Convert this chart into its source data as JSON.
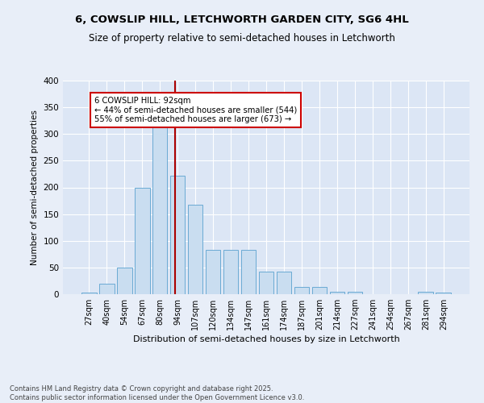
{
  "title1": "6, COWSLIP HILL, LETCHWORTH GARDEN CITY, SG6 4HL",
  "title2": "Size of property relative to semi-detached houses in Letchworth",
  "xlabel": "Distribution of semi-detached houses by size in Letchworth",
  "ylabel": "Number of semi-detached properties",
  "categories": [
    "27sqm",
    "40sqm",
    "54sqm",
    "67sqm",
    "80sqm",
    "94sqm",
    "107sqm",
    "120sqm",
    "134sqm",
    "147sqm",
    "161sqm",
    "174sqm",
    "187sqm",
    "201sqm",
    "214sqm",
    "227sqm",
    "241sqm",
    "254sqm",
    "267sqm",
    "281sqm",
    "294sqm"
  ],
  "values": [
    3,
    19,
    50,
    200,
    325,
    222,
    167,
    83,
    83,
    83,
    42,
    42,
    13,
    13,
    5,
    5,
    0,
    0,
    0,
    5,
    3
  ],
  "bar_color": "#c9ddf0",
  "bar_edge_color": "#6aaad4",
  "bg_color": "#dce6f5",
  "fig_bg_color": "#e8eef8",
  "grid_color": "#ffffff",
  "vline_color": "#aa0000",
  "vline_pos": 4.85,
  "ann_line1": "6 COWSLIP HILL: 92sqm",
  "ann_line2": "← 44% of semi-detached houses are smaller (544)",
  "ann_line3": "55% of semi-detached houses are larger (673) →",
  "ann_box_color": "#cc0000",
  "footer1": "Contains HM Land Registry data © Crown copyright and database right 2025.",
  "footer2": "Contains public sector information licensed under the Open Government Licence v3.0.",
  "ylim": [
    0,
    400
  ],
  "yticks": [
    0,
    50,
    100,
    150,
    200,
    250,
    300,
    350,
    400
  ]
}
